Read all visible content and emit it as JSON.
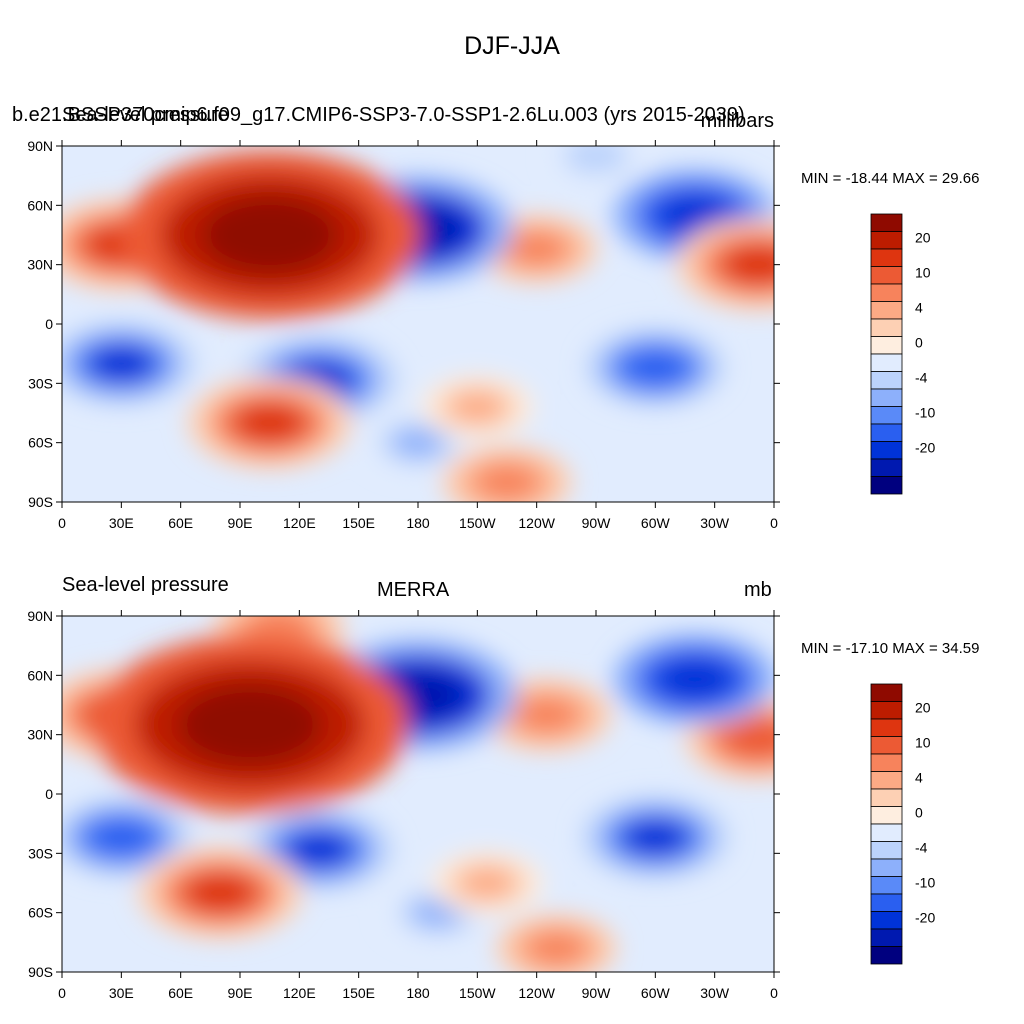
{
  "title": "DJF-JJA",
  "colors": [
    "#00007f",
    "#0019b0",
    "#0033d8",
    "#2a5ff0",
    "#5a8af8",
    "#8db0fb",
    "#bcd3fc",
    "#e1ecfe",
    "#feeee0",
    "#fdd0b4",
    "#fcaa85",
    "#f7835c",
    "#ec5a34",
    "#de3510",
    "#bd1c00",
    "#8f0a00"
  ],
  "colorbar_labels": [
    "-20",
    "-10",
    "-4",
    "0",
    "4",
    "10",
    "20"
  ],
  "panels": [
    {
      "left_label": "b.e21.BSSP370cmip6.f09_g17.CMIP6-SSP3-7.0-SSP1-2.6Lu.003 (yrs 2015-2039)",
      "left_label2": "Sea-level pressure",
      "center_label": "",
      "right_label": "millibars",
      "min_max": "MIN = -18.44 MAX =  29.66"
    },
    {
      "left_label": "Sea-level pressure",
      "center_label": "MERRA",
      "right_label": "mb",
      "min_max": "MIN = -17.10 MAX =  34.59"
    }
  ],
  "chart_data": [
    {
      "type": "heatmap",
      "variable": "Sea-level pressure",
      "units": "millibars",
      "season_difference": "DJF-JJA",
      "min": -18.44,
      "max": 29.66,
      "x_ticks": [
        "0",
        "30E",
        "60E",
        "90E",
        "120E",
        "150E",
        "180",
        "150W",
        "120W",
        "90W",
        "60W",
        "30W",
        "0"
      ],
      "y_ticks": [
        "90N",
        "60N",
        "30N",
        "0",
        "30S",
        "60S",
        "90S"
      ],
      "levels": [
        -20,
        -15,
        -10,
        -8,
        -6,
        -4,
        -2,
        0,
        2,
        4,
        6,
        8,
        10,
        15,
        20
      ],
      "features": [
        {
          "lon": 105,
          "lat": 45,
          "value": 28
        },
        {
          "lon": 95,
          "lat": 32,
          "value": 15
        },
        {
          "lon": 75,
          "lat": 50,
          "value": 12
        },
        {
          "lon": 30,
          "lat": 40,
          "value": 12
        },
        {
          "lon": 180,
          "lat": 48,
          "value": -15
        },
        {
          "lon": 240,
          "lat": 38,
          "value": 7
        },
        {
          "lon": 320,
          "lat": 55,
          "value": -12
        },
        {
          "lon": 352,
          "lat": 30,
          "value": 12
        },
        {
          "lon": 130,
          "lat": -28,
          "value": -11
        },
        {
          "lon": 30,
          "lat": -20,
          "value": -10
        },
        {
          "lon": 300,
          "lat": -22,
          "value": -9
        },
        {
          "lon": 105,
          "lat": -50,
          "value": 12
        },
        {
          "lon": 210,
          "lat": -42,
          "value": 6
        },
        {
          "lon": 180,
          "lat": -60,
          "value": -5
        },
        {
          "lon": 225,
          "lat": -80,
          "value": 8
        },
        {
          "lon": 270,
          "lat": 85,
          "value": -3
        }
      ]
    },
    {
      "type": "heatmap",
      "variable": "Sea-level pressure",
      "units": "mb",
      "dataset": "MERRA",
      "min": -17.1,
      "max": 34.59,
      "x_ticks": [
        "0",
        "30E",
        "60E",
        "90E",
        "120E",
        "150E",
        "180",
        "150W",
        "120W",
        "90W",
        "60W",
        "30W",
        "0"
      ],
      "y_ticks": [
        "90N",
        "60N",
        "30N",
        "0",
        "30S",
        "60S",
        "90S"
      ],
      "levels": [
        -20,
        -15,
        -10,
        -8,
        -6,
        -4,
        -2,
        0,
        2,
        4,
        6,
        8,
        10,
        15,
        20
      ],
      "features": [
        {
          "lon": 95,
          "lat": 35,
          "value": 30
        },
        {
          "lon": 100,
          "lat": 50,
          "value": 20
        },
        {
          "lon": 75,
          "lat": 45,
          "value": 15
        },
        {
          "lon": 30,
          "lat": 40,
          "value": 12
        },
        {
          "lon": 110,
          "lat": 85,
          "value": 8
        },
        {
          "lon": 180,
          "lat": 50,
          "value": -16
        },
        {
          "lon": 245,
          "lat": 40,
          "value": 8
        },
        {
          "lon": 320,
          "lat": 58,
          "value": -12
        },
        {
          "lon": 352,
          "lat": 28,
          "value": 10
        },
        {
          "lon": 130,
          "lat": -28,
          "value": -10
        },
        {
          "lon": 30,
          "lat": -22,
          "value": -9
        },
        {
          "lon": 300,
          "lat": -22,
          "value": -10
        },
        {
          "lon": 80,
          "lat": -50,
          "value": 12
        },
        {
          "lon": 215,
          "lat": -45,
          "value": 6
        },
        {
          "lon": 190,
          "lat": -60,
          "value": -5
        },
        {
          "lon": 250,
          "lat": -78,
          "value": 7
        }
      ]
    }
  ]
}
